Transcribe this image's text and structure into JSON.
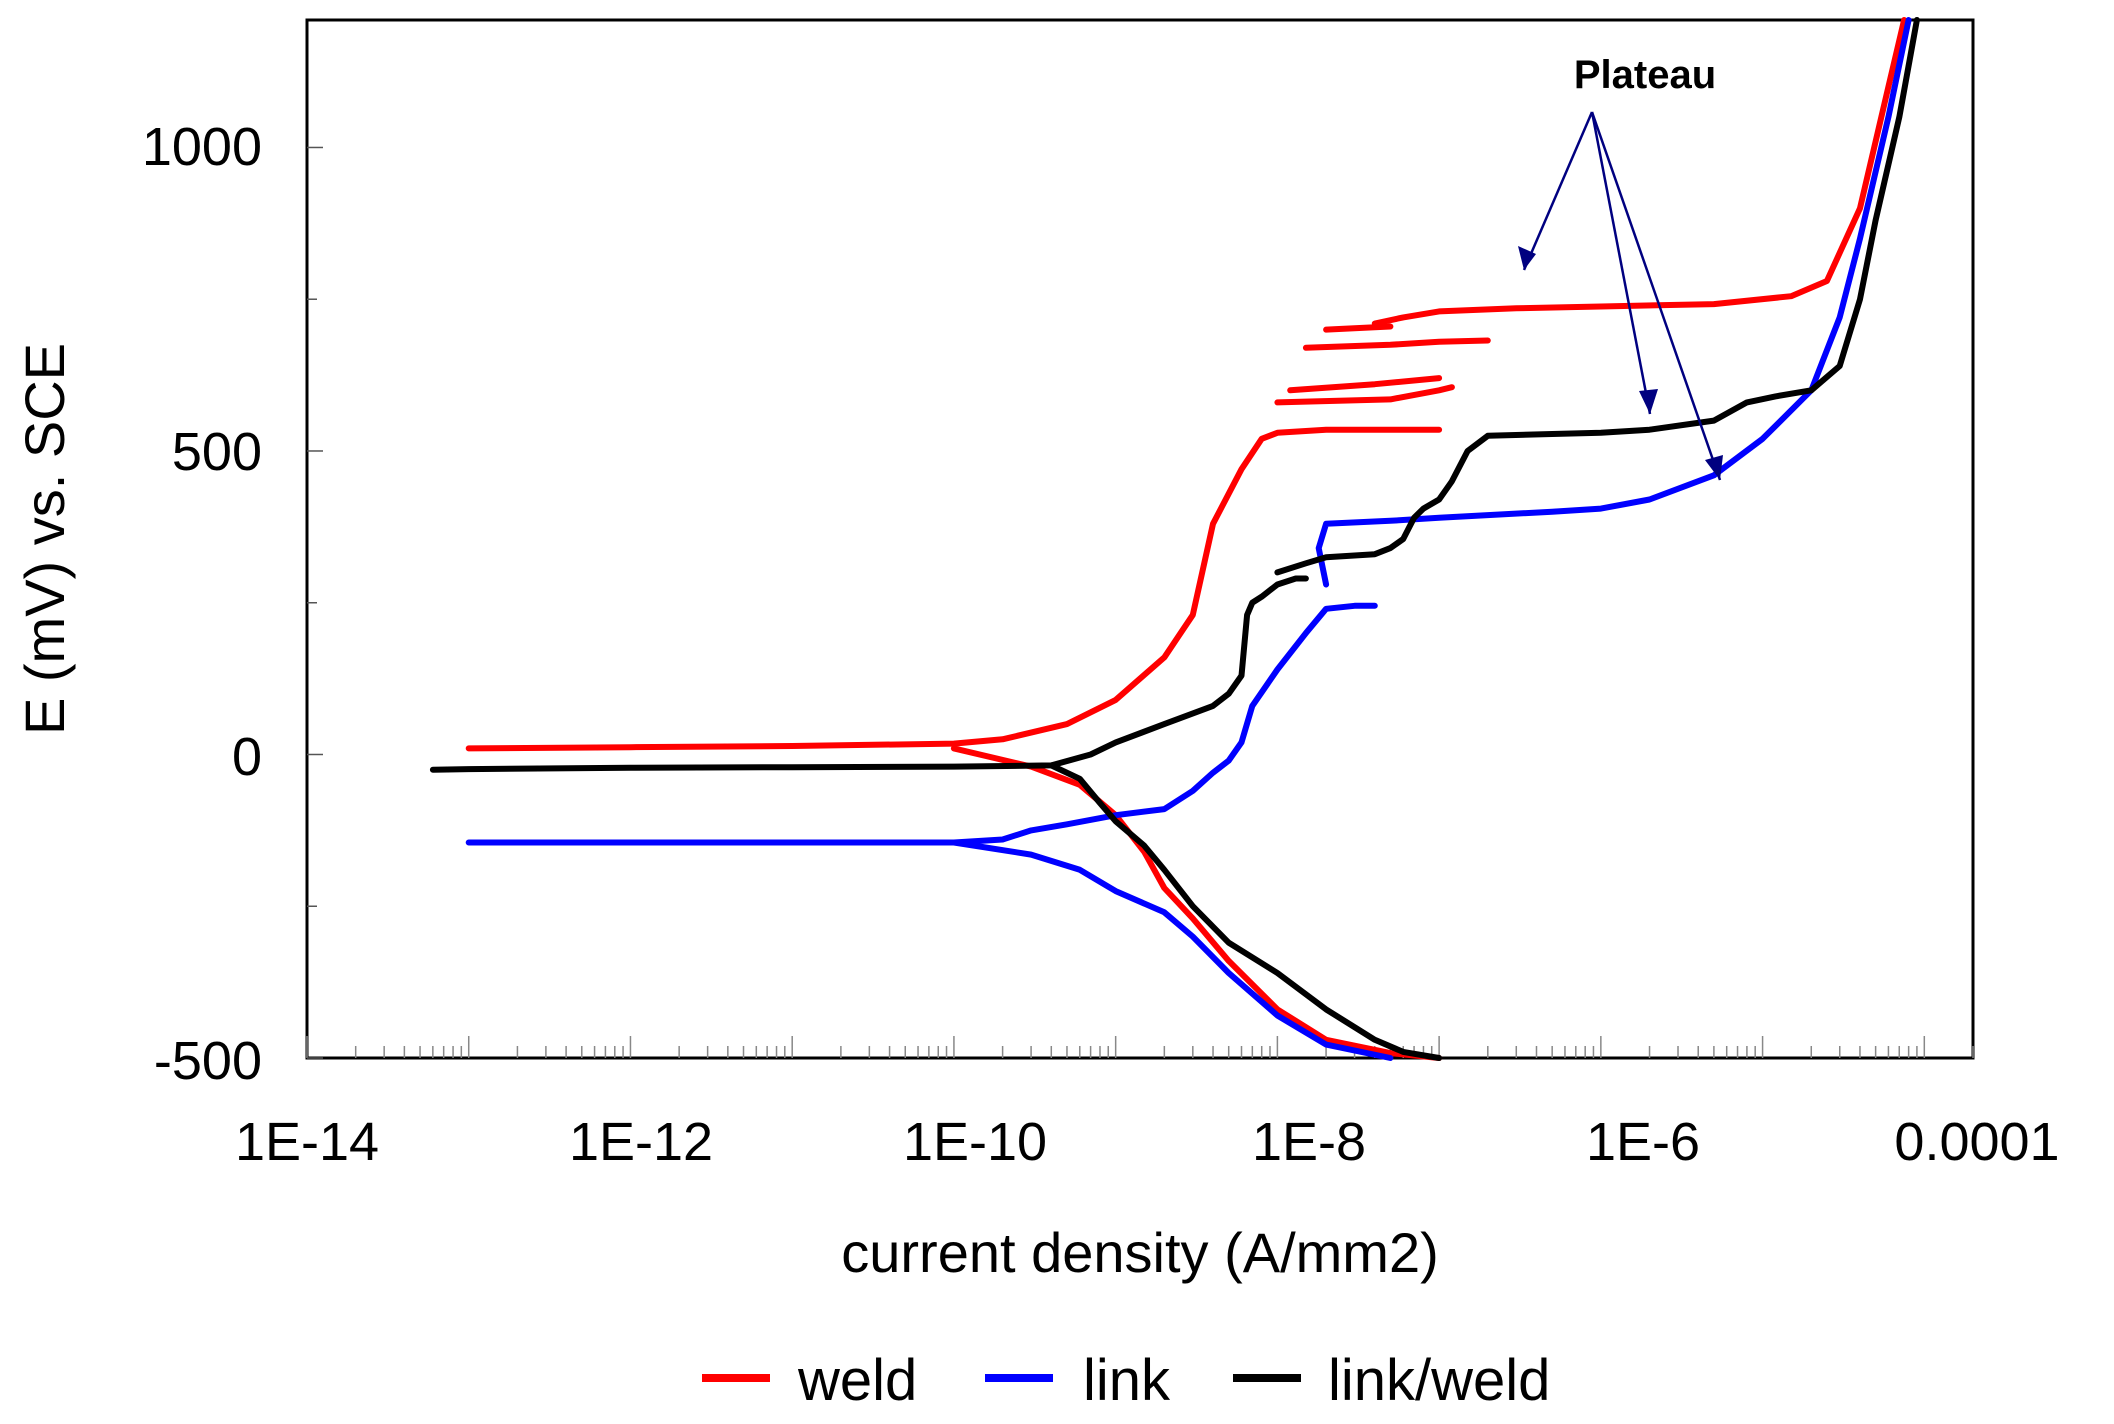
{
  "chart_data": {
    "type": "line",
    "title": "",
    "xlabel": "current density (A/mm2)",
    "ylabel": "E (mV) vs. SCE",
    "x_scale": "log",
    "xlim": [
      1e-14,
      0.0002
    ],
    "ylim": [
      -500,
      1210
    ],
    "x_tick_labels": [
      "1E-14",
      "1E-12",
      "1E-10",
      "1E-8",
      "1E-6",
      "0.0001"
    ],
    "y_tick_labels": [
      "-500",
      "0",
      "500",
      "1000"
    ],
    "legend_position": "bottom",
    "annotation": {
      "text": "Plateau",
      "x": 2e-06,
      "y": 1115
    },
    "colors": {
      "weld": "#ff0000",
      "link": "#0000ff",
      "link/weld": "#000000"
    },
    "series": [
      {
        "name": "weld",
        "color": "#ff0000",
        "branches": [
          [
            [
              1e-13,
              10
            ],
            [
              1e-12,
              12
            ],
            [
              1e-11,
              14
            ],
            [
              1e-10,
              18
            ],
            [
              2e-10,
              25
            ],
            [
              5e-10,
              50
            ],
            [
              1e-09,
              90
            ],
            [
              2e-09,
              160
            ],
            [
              3e-09,
              230
            ],
            [
              4e-09,
              380
            ],
            [
              6e-09,
              470
            ],
            [
              8e-09,
              520
            ],
            [
              1e-08,
              530
            ],
            [
              2e-08,
              535
            ],
            [
              5e-08,
              535
            ],
            [
              1e-07,
              535
            ]
          ],
          [
            [
              1e-08,
              580
            ],
            [
              5e-08,
              585
            ],
            [
              1e-07,
              600
            ],
            [
              1.2e-07,
              605
            ]
          ],
          [
            [
              1.2e-08,
              600
            ],
            [
              4e-08,
              610
            ],
            [
              1e-07,
              620
            ]
          ],
          [
            [
              1.5e-08,
              670
            ],
            [
              5e-08,
              675
            ],
            [
              1e-07,
              680
            ],
            [
              2e-07,
              682
            ]
          ],
          [
            [
              2e-08,
              700
            ],
            [
              5e-08,
              705
            ]
          ],
          [
            [
              4e-08,
              710
            ],
            [
              6e-08,
              720
            ],
            [
              1e-07,
              730
            ],
            [
              3e-07,
              735
            ],
            [
              1e-06,
              738
            ],
            [
              5e-06,
              742
            ],
            [
              1.5e-05,
              755
            ],
            [
              2.5e-05,
              780
            ],
            [
              4e-05,
              900
            ],
            [
              6e-05,
              1100
            ],
            [
              7.5e-05,
              1210
            ]
          ],
          [
            [
              1e-10,
              10
            ],
            [
              3e-10,
              -20
            ],
            [
              6e-10,
              -50
            ],
            [
              1e-09,
              -100
            ],
            [
              1.5e-09,
              -160
            ],
            [
              2e-09,
              -220
            ],
            [
              3e-09,
              -270
            ],
            [
              5e-09,
              -340
            ],
            [
              1e-08,
              -420
            ],
            [
              2e-08,
              -470
            ],
            [
              5e-08,
              -492
            ],
            [
              1e-07,
              -500
            ]
          ]
        ]
      },
      {
        "name": "link",
        "color": "#0000ff",
        "branches": [
          [
            [
              1e-13,
              -145
            ],
            [
              1e-12,
              -145
            ],
            [
              1e-11,
              -145
            ],
            [
              1e-10,
              -145
            ],
            [
              2e-10,
              -140
            ],
            [
              3e-10,
              -125
            ],
            [
              5e-10,
              -115
            ],
            [
              1e-09,
              -100
            ],
            [
              2e-09,
              -90
            ],
            [
              3e-09,
              -60
            ],
            [
              4e-09,
              -30
            ],
            [
              5e-09,
              -10
            ],
            [
              6e-09,
              20
            ],
            [
              7e-09,
              80
            ],
            [
              1e-08,
              140
            ],
            [
              1.5e-08,
              200
            ],
            [
              2e-08,
              240
            ],
            [
              3e-08,
              245
            ],
            [
              4e-08,
              245
            ]
          ],
          [
            [
              2e-08,
              280
            ],
            [
              1.8e-08,
              340
            ],
            [
              2e-08,
              380
            ],
            [
              5e-08,
              385
            ],
            [
              1e-07,
              390
            ],
            [
              5e-07,
              400
            ],
            [
              1e-06,
              405
            ],
            [
              2e-06,
              420
            ],
            [
              5e-06,
              460
            ],
            [
              1e-05,
              520
            ],
            [
              2e-05,
              600
            ],
            [
              3e-05,
              720
            ],
            [
              4e-05,
              850
            ],
            [
              6e-05,
              1050
            ],
            [
              8e-05,
              1210
            ]
          ],
          [
            [
              1e-10,
              -145
            ],
            [
              3e-10,
              -165
            ],
            [
              6e-10,
              -190
            ],
            [
              1e-09,
              -225
            ],
            [
              2e-09,
              -260
            ],
            [
              3e-09,
              -300
            ],
            [
              5e-09,
              -360
            ],
            [
              1e-08,
              -430
            ],
            [
              2e-08,
              -478
            ],
            [
              5e-08,
              -500
            ]
          ]
        ]
      },
      {
        "name": "link/weld",
        "color": "#000000",
        "branches": [
          [
            [
              6e-14,
              -25
            ],
            [
              1e-13,
              -24
            ],
            [
              1e-12,
              -22
            ],
            [
              1e-11,
              -21
            ],
            [
              1e-10,
              -20
            ],
            [
              4e-10,
              -18
            ],
            [
              7e-10,
              0
            ],
            [
              1e-09,
              20
            ],
            [
              2e-09,
              50
            ],
            [
              4e-09,
              80
            ],
            [
              5e-09,
              100
            ],
            [
              6e-09,
              130
            ],
            [
              6.5e-09,
              230
            ],
            [
              7e-09,
              250
            ],
            [
              8e-09,
              260
            ],
            [
              1e-08,
              280
            ],
            [
              1.3e-08,
              290
            ],
            [
              1.5e-08,
              290
            ]
          ],
          [
            [
              1e-08,
              300
            ],
            [
              1.5e-08,
              315
            ],
            [
              2e-08,
              325
            ],
            [
              4e-08,
              330
            ],
            [
              5e-08,
              340
            ],
            [
              6e-08,
              355
            ],
            [
              7e-08,
              390
            ],
            [
              8e-08,
              405
            ],
            [
              1e-07,
              420
            ],
            [
              1.2e-07,
              450
            ],
            [
              1.5e-07,
              500
            ],
            [
              2e-07,
              525
            ],
            [
              5e-07,
              528
            ],
            [
              1e-06,
              530
            ],
            [
              2e-06,
              535
            ],
            [
              5e-06,
              550
            ],
            [
              8e-06,
              580
            ],
            [
              1.2e-05,
              590
            ],
            [
              2e-05,
              600
            ],
            [
              3e-05,
              640
            ],
            [
              4e-05,
              750
            ],
            [
              5e-05,
              880
            ],
            [
              7e-05,
              1050
            ],
            [
              9e-05,
              1210
            ]
          ],
          [
            [
              4e-10,
              -18
            ],
            [
              6e-10,
              -40
            ],
            [
              8e-10,
              -80
            ],
            [
              1e-09,
              -110
            ],
            [
              1.5e-09,
              -150
            ],
            [
              2e-09,
              -190
            ],
            [
              3e-09,
              -250
            ],
            [
              5e-09,
              -310
            ],
            [
              1e-08,
              -360
            ],
            [
              2e-08,
              -420
            ],
            [
              4e-08,
              -470
            ],
            [
              6e-08,
              -490
            ],
            [
              1e-07,
              -500
            ]
          ]
        ]
      }
    ]
  }
}
